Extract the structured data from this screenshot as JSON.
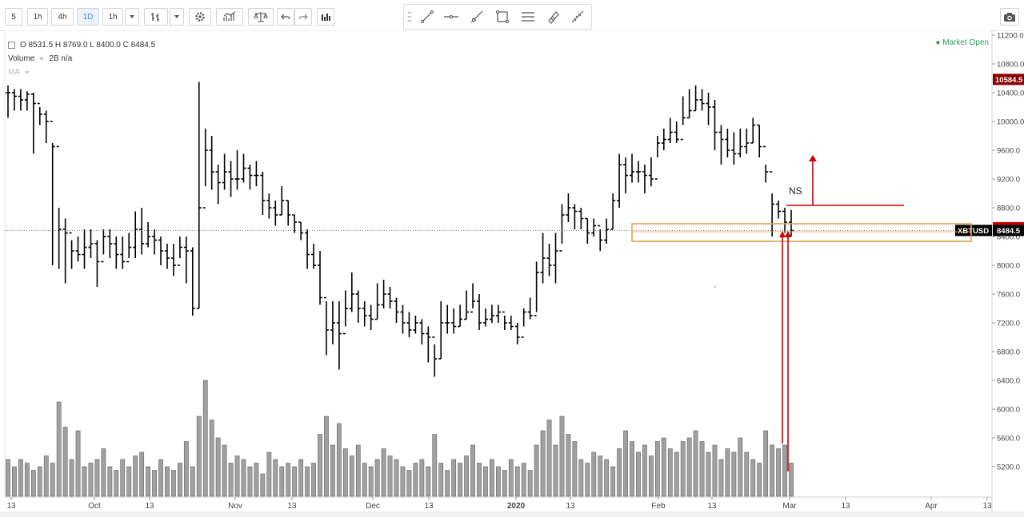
{
  "toolbar": {
    "intervals": [
      "5",
      "1h",
      "4h",
      "1D",
      "1h"
    ],
    "active_interval": "1D"
  },
  "legend": {
    "ohlc": "O 8531.5 H 8769.0 L 8400.0 C 8484.5",
    "volume_label": "Volume",
    "volume_value": "2B n/a",
    "ma_label": "MA"
  },
  "status": {
    "market": "● Market Open"
  },
  "annotation": {
    "ns_label": "NS"
  },
  "colors": {
    "bars": "#000000",
    "volume": "#a0a0a0",
    "accent_red": "#cc0000",
    "zone": "#e8a050",
    "market_green": "#2e9c5d",
    "last_price_bg": "#000000",
    "high_price_bg": "#8b0000"
  },
  "chart_data": {
    "type": "bar",
    "symbol": "XBTUSD",
    "last_price_label": "8484.5",
    "high_price_label": "10584.5",
    "level_price_label": "8523.0",
    "y_ticks": [
      "11200.0",
      "10800.0",
      "10400.0",
      "10000.0",
      "9600.0",
      "9200.0",
      "8800.0",
      "8400.0",
      "8000.0",
      "7600.0",
      "7200.0",
      "6800.0",
      "6400.0",
      "6000.0",
      "5600.0",
      "5200.0"
    ],
    "x_ticks": [
      "13",
      "Oct",
      "13",
      "Nov",
      "13",
      "Dec",
      "13",
      "2020",
      "13",
      "Feb",
      "13",
      "Mar",
      "13",
      "Apr",
      "13"
    ],
    "ylim": [
      4900,
      11300
    ],
    "grid": false,
    "bar_closes": [
      10400,
      10350,
      10300,
      10380,
      10250,
      10100,
      10000,
      9650,
      8500,
      8450,
      8200,
      8150,
      8250,
      8300,
      8050,
      8400,
      8300,
      8150,
      8050,
      8250,
      8500,
      8300,
      8400,
      8350,
      8200,
      8100,
      8000,
      8250,
      8200,
      7400,
      8800,
      9600,
      9300,
      9150,
      9300,
      9200,
      9200,
      9350,
      9250,
      9250,
      8900,
      8800,
      8700,
      8900,
      8700,
      8600,
      8450,
      8150,
      8000,
      7550,
      7100,
      7200,
      7050,
      7400,
      7600,
      7400,
      7300,
      7250,
      7450,
      7600,
      7500,
      7350,
      7200,
      7100,
      7200,
      7050,
      7000,
      6700,
      7200,
      7200,
      7150,
      7250,
      7350,
      7500,
      7200,
      7250,
      7300,
      7350,
      7200,
      7150,
      7000,
      7350,
      7300,
      7900,
      8100,
      8000,
      8200,
      8700,
      8800,
      8750,
      8650,
      8450,
      8550,
      8350,
      8500,
      8900,
      9400,
      9250,
      9300,
      9300,
      9250,
      9200,
      9700,
      9750,
      9850,
      9750,
      10050,
      10150,
      10300,
      10250,
      10200,
      9850,
      9750,
      9600,
      9550,
      9650,
      9700,
      9950,
      9650,
      9300,
      8850,
      8750,
      8600,
      8484.5
    ],
    "bar_high_low": [
      [
        10500,
        10050
      ],
      [
        10450,
        10150
      ],
      [
        10450,
        10150
      ],
      [
        10420,
        10150
      ],
      [
        10400,
        9550
      ],
      [
        10200,
        9950
      ],
      [
        10150,
        9700
      ],
      [
        9700,
        8000
      ],
      [
        8800,
        7950
      ],
      [
        8650,
        7750
      ],
      [
        8350,
        7950
      ],
      [
        8400,
        8050
      ],
      [
        8500,
        7950
      ],
      [
        8500,
        8100
      ],
      [
        8350,
        7700
      ],
      [
        8500,
        8150
      ],
      [
        8500,
        8100
      ],
      [
        8400,
        7950
      ],
      [
        8400,
        7950
      ],
      [
        8450,
        8100
      ],
      [
        8750,
        8100
      ],
      [
        8800,
        8150
      ],
      [
        8600,
        8250
      ],
      [
        8500,
        8150
      ],
      [
        8400,
        8000
      ],
      [
        8300,
        7950
      ],
      [
        8300,
        7850
      ],
      [
        8400,
        8100
      ],
      [
        8400,
        7750
      ],
      [
        8250,
        7300
      ],
      [
        10550,
        7400
      ],
      [
        9900,
        9100
      ],
      [
        9800,
        9050
      ],
      [
        9400,
        8850
      ],
      [
        9550,
        9050
      ],
      [
        9450,
        8950
      ],
      [
        9600,
        9050
      ],
      [
        9550,
        9150
      ],
      [
        9400,
        9050
      ],
      [
        9450,
        9100
      ],
      [
        9300,
        8700
      ],
      [
        9000,
        8650
      ],
      [
        8900,
        8550
      ],
      [
        9100,
        8700
      ],
      [
        8900,
        8550
      ],
      [
        8700,
        8450
      ],
      [
        8600,
        8350
      ],
      [
        8500,
        7950
      ],
      [
        8300,
        7950
      ],
      [
        8200,
        7450
      ],
      [
        7500,
        6750
      ],
      [
        7500,
        6900
      ],
      [
        7500,
        6550
      ],
      [
        7650,
        7150
      ],
      [
        7900,
        7350
      ],
      [
        7650,
        7200
      ],
      [
        7500,
        7150
      ],
      [
        7450,
        7100
      ],
      [
        7750,
        7250
      ],
      [
        7800,
        7400
      ],
      [
        7700,
        7400
      ],
      [
        7550,
        7200
      ],
      [
        7450,
        7050
      ],
      [
        7350,
        7000
      ],
      [
        7300,
        7050
      ],
      [
        7250,
        6900
      ],
      [
        7150,
        6650
      ],
      [
        6900,
        6450
      ],
      [
        7500,
        6700
      ],
      [
        7450,
        7050
      ],
      [
        7400,
        7050
      ],
      [
        7450,
        7150
      ],
      [
        7650,
        7250
      ],
      [
        7750,
        7400
      ],
      [
        7600,
        7100
      ],
      [
        7400,
        7150
      ],
      [
        7450,
        7200
      ],
      [
        7450,
        7200
      ],
      [
        7300,
        7100
      ],
      [
        7300,
        7100
      ],
      [
        7200,
        6900
      ],
      [
        7400,
        7150
      ],
      [
        7550,
        7250
      ],
      [
        8050,
        7350
      ],
      [
        8450,
        7750
      ],
      [
        8300,
        7850
      ],
      [
        8450,
        7750
      ],
      [
        8850,
        8300
      ],
      [
        9000,
        8600
      ],
      [
        8850,
        8500
      ],
      [
        8800,
        8500
      ],
      [
        8650,
        8300
      ],
      [
        8650,
        8400
      ],
      [
        8500,
        8200
      ],
      [
        8650,
        8300
      ],
      [
        9000,
        8500
      ],
      [
        9550,
        8800
      ],
      [
        9500,
        9000
      ],
      [
        9550,
        9150
      ],
      [
        9450,
        9150
      ],
      [
        9400,
        9000
      ],
      [
        9500,
        9100
      ],
      [
        9800,
        9500
      ],
      [
        9900,
        9600
      ],
      [
        10050,
        9700
      ],
      [
        10000,
        9700
      ],
      [
        10350,
        9950
      ],
      [
        10450,
        10050
      ],
      [
        10500,
        10150
      ],
      [
        10450,
        10150
      ],
      [
        10400,
        9950
      ],
      [
        10300,
        9600
      ],
      [
        9950,
        9400
      ],
      [
        9900,
        9500
      ],
      [
        9850,
        9400
      ],
      [
        9900,
        9500
      ],
      [
        9900,
        9550
      ],
      [
        10050,
        9700
      ],
      [
        9950,
        9500
      ],
      [
        9400,
        9150
      ],
      [
        9000,
        8400
      ],
      [
        8900,
        8650
      ],
      [
        8800,
        8450
      ],
      [
        8769,
        8400
      ]
    ],
    "volume": [
      5300,
      5200,
      5300,
      5250,
      5150,
      5200,
      5350,
      5250,
      6100,
      5750,
      5300,
      5700,
      5200,
      5250,
      5300,
      5450,
      5200,
      5150,
      5300,
      5200,
      5350,
      5400,
      5200,
      5150,
      5300,
      5200,
      5150,
      5250,
      5550,
      5200,
      5900,
      6400,
      5850,
      5600,
      5500,
      5250,
      5350,
      5300,
      5200,
      5250,
      5100,
      5400,
      5300,
      5200,
      5250,
      5200,
      5300,
      5200,
      5250,
      5650,
      5900,
      5500,
      5800,
      5450,
      5350,
      5500,
      5250,
      5200,
      5300,
      5450,
      5350,
      5300,
      5200,
      5150,
      5250,
      5300,
      5200,
      5650,
      5250,
      5150,
      5300,
      5250,
      5350,
      5500,
      5250,
      5200,
      5300,
      5200,
      5150,
      5300,
      5200,
      5250,
      5150,
      5500,
      5700,
      5850,
      5500,
      5900,
      5650,
      5550,
      5300,
      5250,
      5400,
      5350,
      5300,
      5200,
      5450,
      5700,
      5550,
      5400,
      5500,
      5350,
      5550,
      5600,
      5450,
      5400,
      5550,
      5600,
      5700,
      5550,
      5400,
      5500,
      5300,
      5450,
      5400,
      5600,
      5400,
      5300,
      5250,
      5700,
      5500,
      5450,
      5500,
      5250
    ]
  }
}
